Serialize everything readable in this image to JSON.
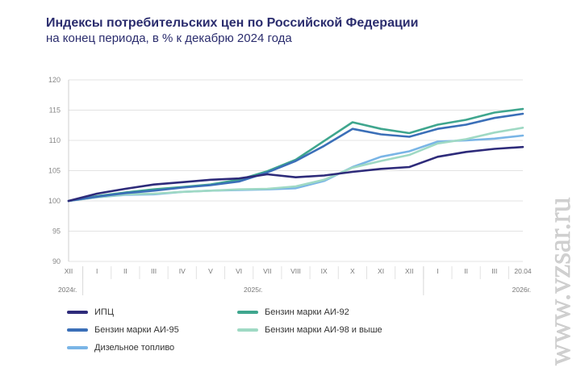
{
  "header": {
    "title": "Индексы потребительских цен по Российской Федерации",
    "subtitle": "на конец периода, в % к декабрю 2024 года"
  },
  "watermark": {
    "text": "www.vzsar.ru"
  },
  "chart_data": {
    "type": "line",
    "title": "Индексы потребительских цен по Российской Федерации",
    "subtitle": "на конец периода, в % к декабрю 2024 года",
    "ylim": [
      90,
      120
    ],
    "yticks": [
      90,
      95,
      100,
      105,
      110,
      115,
      120
    ],
    "categories": [
      "XII",
      "I",
      "II",
      "III",
      "IV",
      "V",
      "VI",
      "VII",
      "VIII",
      "IX",
      "X",
      "XI",
      "XII",
      "I",
      "II",
      "III",
      "20.04"
    ],
    "year_labels": [
      {
        "text": "2024г.",
        "at": 0
      },
      {
        "text": "2025г.",
        "at": 6.5
      },
      {
        "text": "2026г.",
        "at": 16
      }
    ],
    "grid": true,
    "legend_position": "bottom",
    "series": [
      {
        "name": "ИПЦ",
        "color": "#2e2b7a",
        "values": [
          100,
          101.2,
          102.0,
          102.7,
          103.1,
          103.5,
          103.7,
          104.4,
          103.9,
          104.2,
          104.8,
          105.3,
          105.6,
          107.3,
          108.1,
          108.6,
          108.9
        ]
      },
      {
        "name": "Бензин марки АИ-92",
        "color": "#3fa68e",
        "values": [
          100,
          100.8,
          101.4,
          101.9,
          102.3,
          102.7,
          103.5,
          104.9,
          106.8,
          109.9,
          113.0,
          111.9,
          111.2,
          112.6,
          113.4,
          114.6,
          115.2
        ]
      },
      {
        "name": "Бензин марки АИ-95",
        "color": "#3b6fb8",
        "values": [
          100,
          100.7,
          101.3,
          101.7,
          102.2,
          102.6,
          103.2,
          104.7,
          106.6,
          109.1,
          111.9,
          111.0,
          110.6,
          111.9,
          112.6,
          113.7,
          114.4
        ]
      },
      {
        "name": "Бензин марки АИ-98 и выше",
        "color": "#9fd9c4",
        "values": [
          100,
          100.6,
          101.1,
          101.2,
          101.5,
          101.7,
          101.9,
          102.0,
          102.4,
          103.5,
          105.5,
          106.6,
          107.6,
          109.5,
          110.2,
          111.3,
          112.1
        ]
      },
      {
        "name": "Дизельное топливо",
        "color": "#7ab5e6",
        "values": [
          100,
          100.6,
          101.0,
          101.1,
          101.5,
          101.7,
          101.8,
          101.9,
          102.1,
          103.3,
          105.6,
          107.3,
          108.2,
          109.8,
          110.0,
          110.3,
          110.8
        ]
      }
    ]
  }
}
